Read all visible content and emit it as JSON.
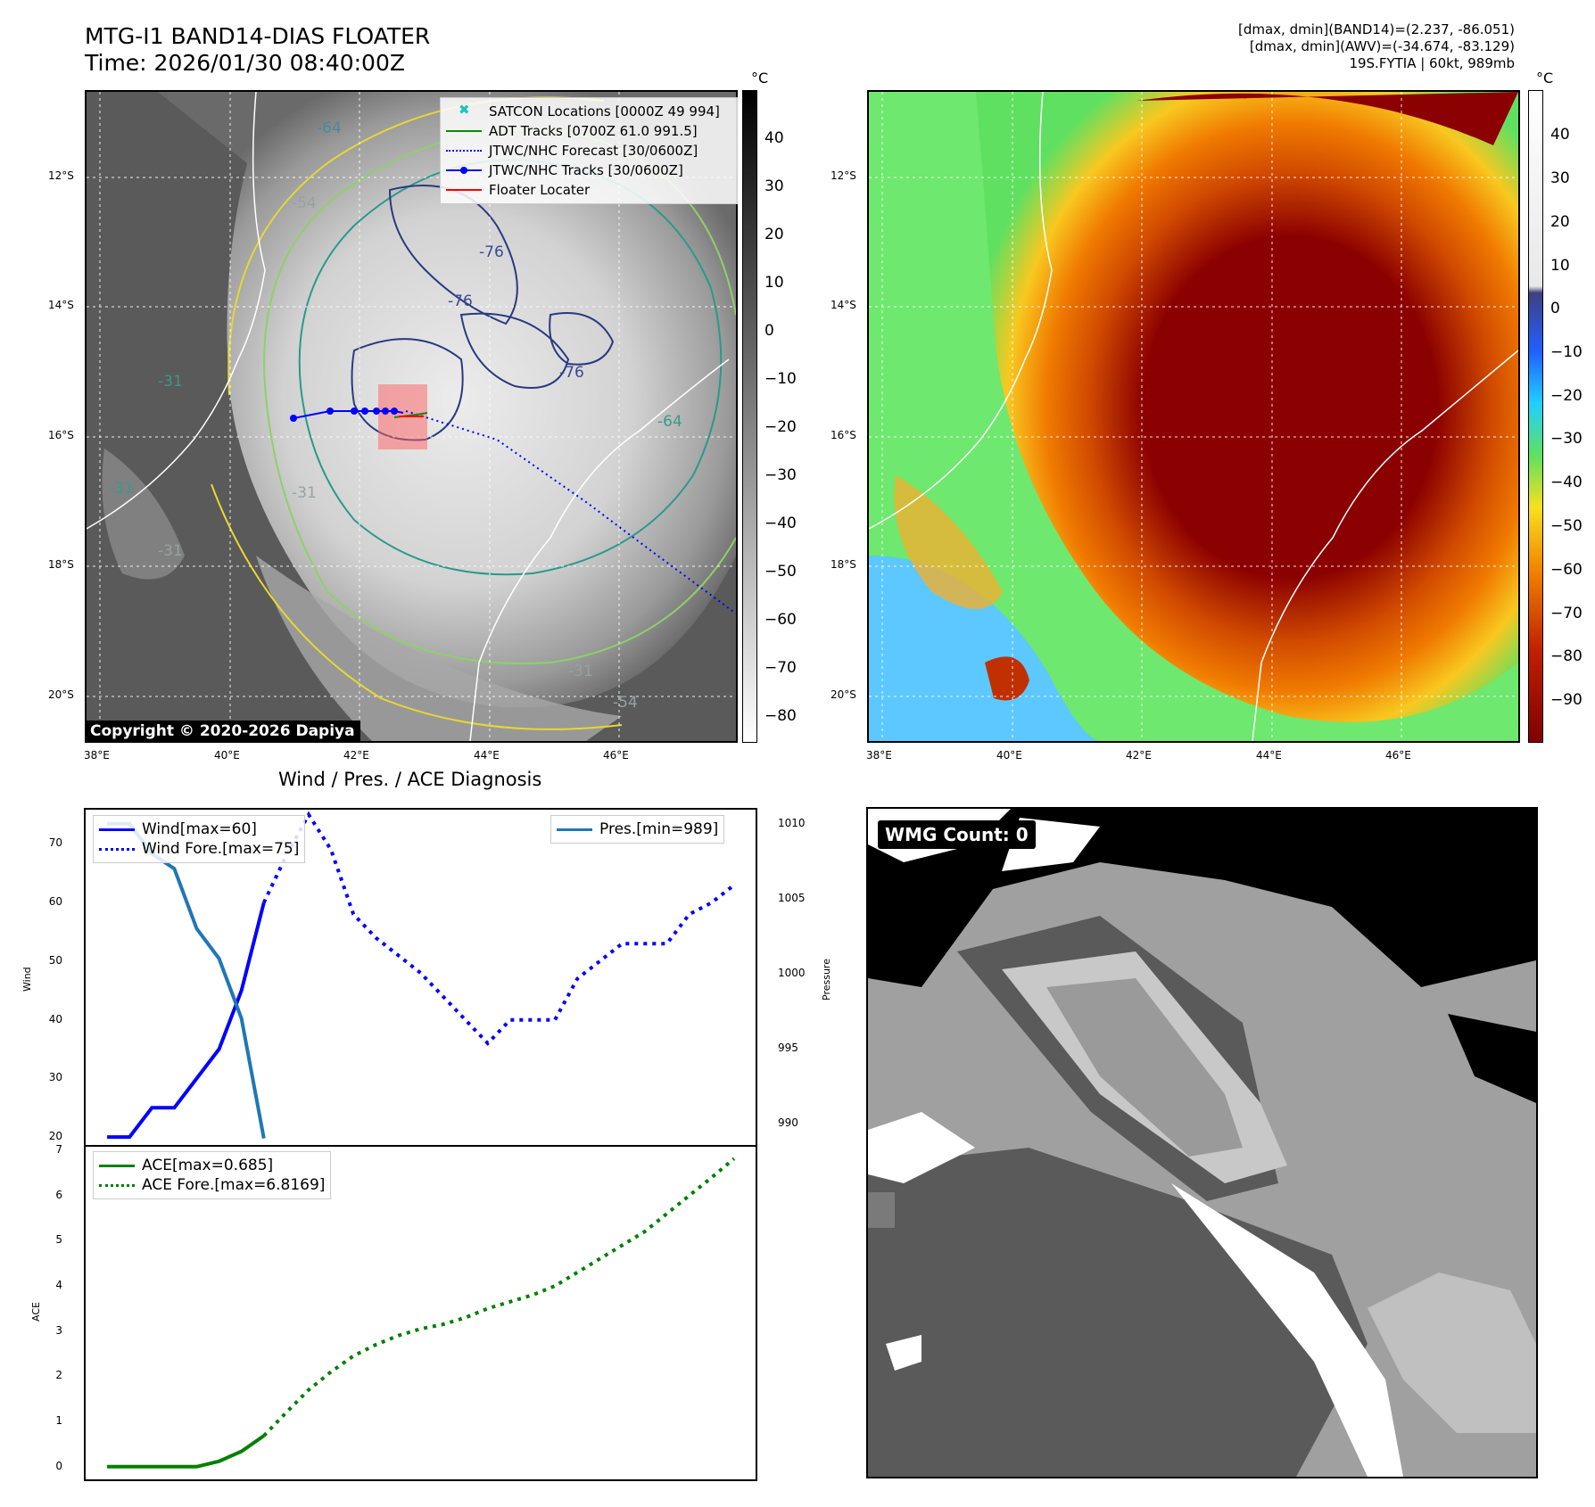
{
  "header": {
    "title_line1": "MTG-I1 BAND14-DIAS FLOATER",
    "title_line2": "Time: 2026/01/30 08:40:00Z",
    "info_line1": "[dmax, dmin](BAND14)=(2.237, -86.051)",
    "info_line2": "[dmax, dmin](AWV)=(-34.674, -83.129)",
    "info_line3": "19S.FYTIA | 60kt, 989mb"
  },
  "map": {
    "lat_labels": [
      "12°S",
      "14°S",
      "16°S",
      "18°S",
      "20°S"
    ],
    "lon_labels": [
      "38°E",
      "40°E",
      "42°E",
      "44°E",
      "46°E"
    ],
    "contour_labels": [
      "-64",
      "-54",
      "-76",
      "-76",
      "-76",
      "-31",
      "-31",
      "-31",
      "-64",
      "-31",
      "-54",
      "-31"
    ],
    "copyright": "Copyright © 2020-2026 Dapiya",
    "legend": [
      {
        "label": "SATCON Locations [0000Z 49 994]",
        "color": "#18c4c4",
        "style": "x"
      },
      {
        "label": "ADT Tracks [0700Z 61.0 991.5]",
        "color": "#0a8a0a",
        "style": "line"
      },
      {
        "label": "JTWC/NHC Forecast [30/0600Z]",
        "color": "#0000ff",
        "style": "dotted"
      },
      {
        "label": "JTWC/NHC Tracks [30/0600Z]",
        "color": "#0000ff",
        "style": "line-dot"
      },
      {
        "label": "Floater Locater",
        "color": "#ff0000",
        "style": "line"
      }
    ],
    "colorbar_gray": {
      "unit": "°C",
      "ticks": [
        "40",
        "30",
        "20",
        "10",
        "0",
        "−10",
        "−20",
        "−30",
        "−40",
        "−50",
        "−60",
        "−70",
        "−80"
      ]
    },
    "colorbar_color": {
      "unit": "°C",
      "ticks": [
        "40",
        "30",
        "20",
        "10",
        "0",
        "−10",
        "−20",
        "−30",
        "−40",
        "−50",
        "−60",
        "−70",
        "−80",
        "−90"
      ]
    }
  },
  "diagnosis": {
    "title": "Wind / Pres. / ACE Diagnosis",
    "wind_ylabel": "Wind",
    "pres_ylabel": "Pressure",
    "ace_ylabel": "ACE",
    "wind_ticks": [
      "70",
      "60",
      "50",
      "40",
      "30",
      "20"
    ],
    "pres_ticks": [
      "1010",
      "1005",
      "1000",
      "995",
      "990"
    ],
    "ace_ticks": [
      "7",
      "6",
      "5",
      "4",
      "3",
      "2",
      "1",
      "0"
    ],
    "legend_wind": "Wind[max=60]",
    "legend_wind_fore": "Wind Fore.[max=75]",
    "legend_pres": "Pres.[min=989]",
    "legend_ace": "ACE[max=0.685]",
    "legend_ace_fore": "ACE Fore.[max=6.8169]"
  },
  "chart_data": [
    {
      "type": "line",
      "title": "Wind / Pres. / ACE Diagnosis",
      "ylabel": "Wind",
      "ylim": [
        18.5,
        76
      ],
      "series": [
        {
          "name": "Wind[max=60]",
          "x": [
            0,
            1,
            2,
            3,
            4,
            5,
            6,
            7
          ],
          "values": [
            20,
            20,
            25,
            25,
            30,
            35,
            45,
            60
          ],
          "color": "#0000ff",
          "style": "solid"
        },
        {
          "name": "Wind Fore.[max=75]",
          "x": [
            7,
            8,
            9,
            10,
            11,
            12,
            13,
            14,
            15,
            16,
            17,
            18,
            19,
            20,
            21,
            22,
            23,
            24,
            25,
            26,
            27,
            28
          ],
          "values": [
            60,
            68,
            75,
            69,
            58,
            54,
            51,
            48,
            44,
            40,
            36,
            40,
            40,
            40,
            47,
            50,
            53,
            53,
            53,
            58,
            60,
            63
          ],
          "color": "#0000ff",
          "style": "dotted"
        }
      ],
      "xlim": [
        -1,
        29
      ]
    },
    {
      "type": "line",
      "ylabel": "Pressure",
      "ylim": [
        988.5,
        1011
      ],
      "series": [
        {
          "name": "Pres.[min=989]",
          "x": [
            0,
            1,
            2,
            3,
            4,
            5,
            6,
            7
          ],
          "values": [
            1010,
            1010,
            1008,
            1007,
            1003,
            1001,
            997,
            989
          ],
          "color": "#1f77b4",
          "style": "solid"
        }
      ],
      "xlim": [
        -1,
        29
      ]
    },
    {
      "type": "line",
      "ylabel": "ACE",
      "ylim": [
        -0.3,
        7.1
      ],
      "series": [
        {
          "name": "ACE[max=0.685]",
          "x": [
            0,
            1,
            2,
            3,
            4,
            5,
            6,
            7
          ],
          "values": [
            0,
            0,
            0,
            0,
            0,
            0.12,
            0.34,
            0.685
          ],
          "color": "#008000",
          "style": "solid"
        },
        {
          "name": "ACE Fore.[max=6.8169]",
          "x": [
            7,
            8,
            9,
            10,
            11,
            12,
            13,
            14,
            15,
            16,
            17,
            18,
            19,
            20,
            21,
            22,
            23,
            24,
            25,
            26,
            27,
            28
          ],
          "values": [
            0.685,
            1.2,
            1.7,
            2.1,
            2.45,
            2.7,
            2.9,
            3.05,
            3.15,
            3.3,
            3.5,
            3.65,
            3.8,
            4.0,
            4.3,
            4.6,
            4.9,
            5.2,
            5.6,
            6.0,
            6.4,
            6.8169
          ],
          "color": "#008000",
          "style": "dotted"
        }
      ],
      "xlim": [
        -1,
        29
      ]
    }
  ],
  "wmg": {
    "label": "WMG Count: 0"
  }
}
